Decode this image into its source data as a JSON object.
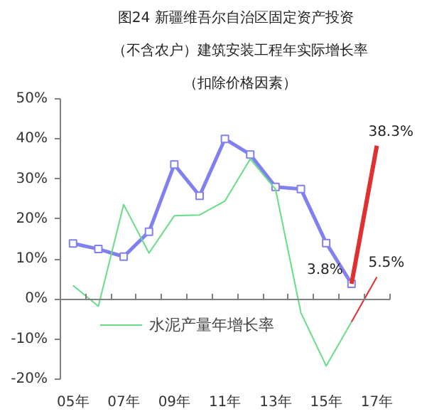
{
  "chart_data": {
    "type": "line",
    "title": "图24   新疆维吾尔自治区固定资产投资",
    "subtitle": "（不含农户）建筑安装工程年实际增长率",
    "annotations": [
      "（扣除价格因素）"
    ],
    "categories": [
      "05年",
      null,
      "07年",
      null,
      "09年",
      null,
      "11年",
      null,
      "13年",
      null,
      "15年",
      null,
      "17年"
    ],
    "series": [
      {
        "color": "#8080f0",
        "marker": "square",
        "values": [
          13.9,
          12.5,
          10.6,
          16.8,
          33.6,
          25.8,
          40,
          36.1,
          28,
          27.5,
          14,
          3.8,
          null
        ]
      },
      {
        "color": "#e03030",
        "values": [
          null,
          null,
          null,
          null,
          null,
          null,
          null,
          null,
          null,
          null,
          null,
          3.8,
          38.3
        ],
        "value_labels": [
          null,
          null,
          null,
          null,
          null,
          null,
          null,
          null,
          null,
          null,
          null,
          "3.8%",
          "38.3%"
        ]
      },
      {
        "name": "水泥产量年增长率",
        "color": "#66dd88",
        "values": [
          3.4,
          -1.8,
          23.6,
          11.5,
          20.8,
          21,
          24.5,
          35,
          27.4,
          -3.4,
          -16.7,
          -5.7,
          null
        ]
      },
      {
        "color": "#e03030",
        "values": [
          null,
          null,
          null,
          null,
          null,
          null,
          null,
          null,
          null,
          null,
          null,
          -5.7,
          5.5
        ],
        "value_labels": [
          null,
          null,
          null,
          null,
          null,
          null,
          null,
          null,
          null,
          null,
          null,
          null,
          "5.5%"
        ]
      }
    ],
    "ylim": [
      -20,
      50
    ],
    "yticks": [
      {
        "value": -20,
        "label": "-20%"
      },
      {
        "value": -10,
        "label": "-10%"
      },
      {
        "value": 0,
        "label": "0%"
      },
      {
        "value": 10,
        "label": "10%"
      },
      {
        "value": 20,
        "label": "20%"
      },
      {
        "value": 30,
        "label": "30%"
      },
      {
        "value": 40,
        "label": "40%"
      },
      {
        "value": 50,
        "label": "50%"
      }
    ],
    "legend": "bottom left"
  }
}
